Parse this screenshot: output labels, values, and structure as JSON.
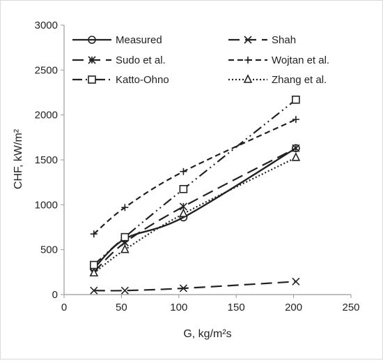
{
  "chart_data": {
    "type": "line",
    "xlabel": "G, kg/m²s",
    "ylabel": "CHF, kW/m²",
    "xlim": [
      0,
      250
    ],
    "ylim": [
      0,
      3000
    ],
    "x_ticks": [
      0,
      50,
      100,
      150,
      200,
      250
    ],
    "y_ticks": [
      0,
      500,
      1000,
      1500,
      2000,
      2500,
      3000
    ],
    "grid": false,
    "legend_position": "top",
    "series": [
      {
        "name": "Measured",
        "marker": "circle",
        "dash": "solid",
        "x": [
          26,
          53,
          104,
          202
        ],
        "y": [
          290,
          620,
          860,
          1630
        ]
      },
      {
        "name": "Shah",
        "marker": "x",
        "dash": "long-dash",
        "x": [
          26,
          53,
          104,
          202
        ],
        "y": [
          45,
          45,
          70,
          145
        ]
      },
      {
        "name": "Sudo et al.",
        "marker": "asterisk",
        "dash": "long-dash",
        "x": [
          26,
          53,
          104,
          202
        ],
        "y": [
          250,
          580,
          980,
          1630
        ]
      },
      {
        "name": "Wojtan et al.",
        "marker": "plus",
        "dash": "dash",
        "x": [
          26,
          53,
          104,
          202
        ],
        "y": [
          675,
          970,
          1370,
          1950
        ]
      },
      {
        "name": "Katto-Ohno",
        "marker": "square",
        "dash": "dash-dot-dot",
        "x": [
          26,
          53,
          104,
          202
        ],
        "y": [
          330,
          640,
          1175,
          2170
        ]
      },
      {
        "name": "Zhang et al.",
        "marker": "triangle",
        "dash": "dot",
        "x": [
          26,
          53,
          104,
          202
        ],
        "y": [
          240,
          500,
          900,
          1525
        ]
      }
    ]
  }
}
